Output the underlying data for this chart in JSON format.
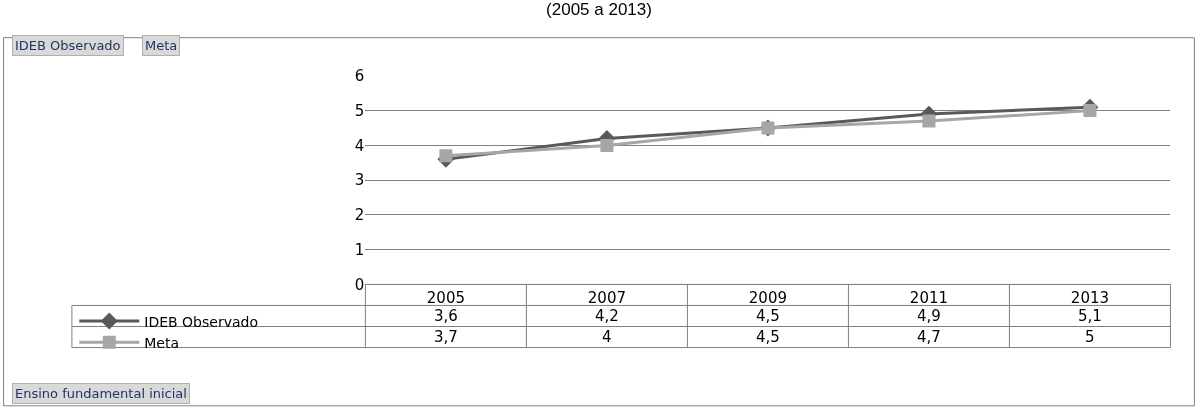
{
  "chart_data": {
    "type": "line",
    "title": "(2005 a 2013)",
    "categories": [
      "2005",
      "2007",
      "2009",
      "2011",
      "2013"
    ],
    "series": [
      {
        "name": "IDEB Observado",
        "color": "#595959",
        "marker": "diamond",
        "values": [
          3.6,
          4.2,
          4.5,
          4.9,
          5.1
        ],
        "value_labels": [
          "3,6",
          "4,2",
          "4,5",
          "4,9",
          "5,1"
        ]
      },
      {
        "name": "Meta",
        "color": "#a6a6a6",
        "marker": "square",
        "values": [
          3.7,
          4,
          4.5,
          4.7,
          5
        ],
        "value_labels": [
          "3,7",
          "4",
          "4,5",
          "4,7",
          "5"
        ]
      }
    ],
    "ylim": [
      0,
      6
    ],
    "yticks": [
      0,
      1,
      2,
      3,
      4,
      5,
      6
    ],
    "grid": "y",
    "legend": "bottom left",
    "annotations": [
      "IDEB Observado",
      "Meta",
      "Ensino fundamental inicial"
    ]
  }
}
